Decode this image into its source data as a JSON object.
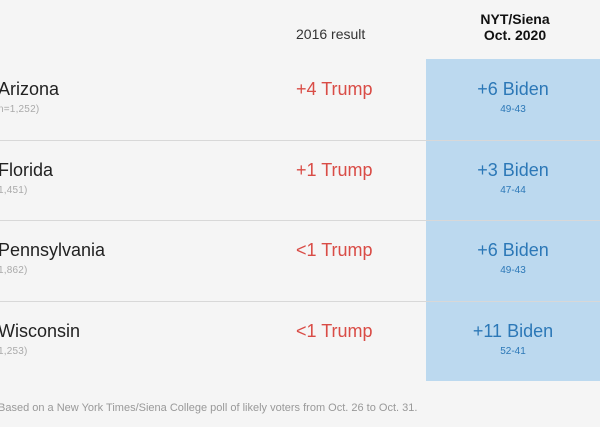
{
  "headers": {
    "result_2016": "2016 result",
    "poll_line1": "NYT/Siena",
    "poll_line2": "Oct. 2020"
  },
  "rows": [
    {
      "state": "Arizona",
      "n": "n=1,252)",
      "result_2016": "+4 Trump",
      "poll_margin": "+6 Biden",
      "poll_split": "49-43"
    },
    {
      "state": "Florida",
      "n": "1,451)",
      "result_2016": "+1 Trump",
      "poll_margin": "+3 Biden",
      "poll_split": "47-44"
    },
    {
      "state": "Pennsylvania",
      "n": "1,862)",
      "result_2016": "<1 Trump",
      "poll_margin": "+6 Biden",
      "poll_split": "49-43"
    },
    {
      "state": "Wisconsin",
      "n": "1,253)",
      "result_2016": "<1 Trump",
      "poll_margin": "+11 Biden",
      "poll_split": "52-41"
    }
  ],
  "footnote": "Based on a New York Times/Siena College poll of likely voters from Oct. 26 to Oct. 31.",
  "colors": {
    "background": "#f5f5f5",
    "highlight": "#bcd9ef",
    "trump_red": "#d94c46",
    "biden_blue": "#2c78b7"
  }
}
